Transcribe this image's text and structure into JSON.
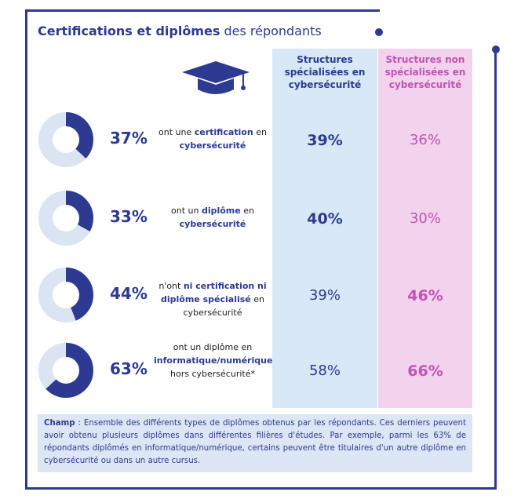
{
  "title": {
    "bold": "Certifications et diplômes",
    "rest": " des répondants"
  },
  "columns": {
    "specialized": "Structures spécialisées en cybersécurité",
    "non_specialized": "Structures non spécialisées en cybersécurité"
  },
  "colors": {
    "navy": "#2c3a92",
    "donut_bg": "#dbe4f2",
    "pink": "#c054b2",
    "blue_col": "#d9e8f7",
    "pink_col": "#f3d2ee"
  },
  "icon": "graduation-cap-icon",
  "rows": [
    {
      "pct_label": "37%",
      "pre": "ont une ",
      "hl1": "certification",
      "mid": " en ",
      "hl2": "cybersécurité",
      "post": "",
      "spec": "39%",
      "nonspec": "36%"
    },
    {
      "pct_label": "33%",
      "pre": "ont un ",
      "hl1": "diplôme",
      "mid": " en ",
      "hl2": "cybersécurité",
      "post": "",
      "spec": "40%",
      "nonspec": "30%"
    },
    {
      "pct_label": "44%",
      "pre": "n'ont ",
      "hl1": "ni certification ni diplôme spécialisé",
      "mid": " en",
      "hl2": "",
      "post": "cybersécurité",
      "spec": "39%",
      "nonspec": "46%"
    },
    {
      "pct_label": "63%",
      "pre": "ont un diplôme en",
      "hl1": "informatique/numérique",
      "mid": "",
      "hl2": "",
      "post": "hors cybersécurité*",
      "spec": "58%",
      "nonspec": "66%"
    }
  ],
  "chart_data": {
    "type": "table",
    "categories": [
      "ont une certification en cybersécurité",
      "ont un diplôme en cybersécurité",
      "n'ont ni certification ni diplôme spécialisé en cybersécurité",
      "ont un diplôme en informatique/numérique hors cybersécurité*"
    ],
    "series": [
      {
        "name": "",
        "values": [
          37,
          33,
          44,
          63
        ]
      },
      {
        "name": "Structures spécialisées en cybersécurité",
        "values": [
          39,
          40,
          39,
          58
        ]
      },
      {
        "name": "Structures non spécialisées en cybersécurité",
        "values": [
          36,
          30,
          46,
          66
        ]
      }
    ]
  },
  "note": {
    "label": "Champ",
    "text": " : Ensemble des différents types de diplômes obtenus par les répondants. Ces derniers peuvent avoir obtenu plusieurs diplômes dans différentes filières d'études. Par exemple, parmi les 63% de répondants diplômés en informatique/numérique, certains peuvent être titulaires d'un autre diplôme en cybersécurité ou dans un autre cursus."
  }
}
